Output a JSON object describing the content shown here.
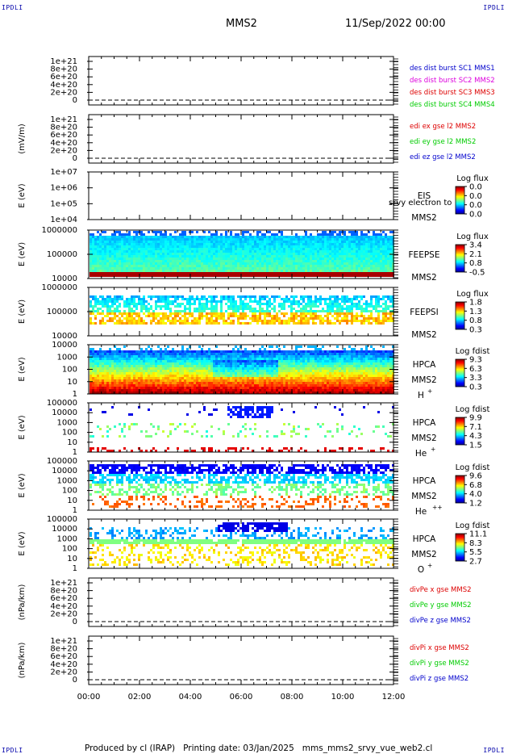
{
  "corner_labels": {
    "top_left": "IPDLI",
    "top_right": "IPDLI",
    "bottom_left": "IPDLI",
    "bottom_right": "IPDLI"
  },
  "header": {
    "spacecraft": "MMS2",
    "datetime": "11/Sep/2022 00:00"
  },
  "footer": {
    "text": "Produced by cl (IRAP)   Printing date: 03/Jan/2025   mms_mms2_srvy_vue_web2.cl"
  },
  "colors": {
    "red": "#dd0000",
    "magenta": "#dd00dd",
    "green": "#00cc00",
    "blue": "#0000cc"
  },
  "chart_data": {
    "type": "multi-panel time series / spectrogram",
    "x_ticks": [
      "00:00",
      "02:00",
      "04:00",
      "06:00",
      "08:00",
      "10:00",
      "12:00"
    ],
    "xlim": [
      "00:00",
      "12:00"
    ],
    "panels": [
      {
        "kind": "line",
        "ylabel": "",
        "yticks": [
          "1e+21",
          "8e+20",
          "6e+20",
          "4e+20",
          "2e+20",
          "0"
        ],
        "legend": [
          {
            "text": "des dist burst SC1 MMS1",
            "color": "blue"
          },
          {
            "text": "des dist burst SC2 MMS2",
            "color": "magenta"
          },
          {
            "text": "des dist burst SC3 MMS3",
            "color": "red"
          },
          {
            "text": "des dist burst SC4 MMS4",
            "color": "green"
          }
        ]
      },
      {
        "kind": "line",
        "ylabel": "(mV/m)",
        "yticks": [
          "1e+21",
          "8e+20",
          "6e+20",
          "4e+20",
          "2e+20",
          "0"
        ],
        "legend": [
          {
            "text": "edi ex gse l2 MMS2",
            "color": "red"
          },
          {
            "text": "edi ey gse l2 MMS2",
            "color": "green"
          },
          {
            "text": "edi ez gse l2 MMS2",
            "color": "blue"
          }
        ]
      },
      {
        "kind": "spectrogram",
        "ylabel": "E (eV)",
        "yticks": [
          "1e+07",
          "1e+06",
          "1e+05",
          "1e+04"
        ],
        "labels": [
          "EIS",
          "MMS2"
        ],
        "overlay": "srvy electron to",
        "cbar_title": "Log flux",
        "cbar_ticks": [
          "0.0",
          "0.0",
          "0.0",
          "0.0"
        ]
      },
      {
        "kind": "spectrogram",
        "ylabel": "E (eV)",
        "yticks": [
          "1000000",
          "100000",
          "10000"
        ],
        "labels": [
          "FEEPSE",
          "MMS2"
        ],
        "cbar_title": "Log flux",
        "cbar_ticks": [
          "3.4",
          "2.1",
          "0.8",
          "-0.5"
        ]
      },
      {
        "kind": "spectrogram",
        "ylabel": "E (eV)",
        "yticks": [
          "1000000",
          "100000",
          "10000"
        ],
        "labels": [
          "FEEPSI",
          "MMS2"
        ],
        "cbar_title": "Log flux",
        "cbar_ticks": [
          "1.8",
          "1.3",
          "0.8",
          "0.3"
        ]
      },
      {
        "kind": "spectrogram",
        "ylabel": "E (eV)",
        "yticks": [
          "10000",
          "1000",
          "100",
          "10",
          "1"
        ],
        "labels": [
          "HPCA",
          "MMS2"
        ],
        "species": "H",
        "species_sup": "+",
        "cbar_title": "Log fdist",
        "cbar_ticks": [
          "9.3",
          "6.3",
          "3.3",
          "0.3"
        ]
      },
      {
        "kind": "spectrogram",
        "ylabel": "E (eV)",
        "yticks": [
          "100000",
          "10000",
          "1000",
          "100",
          "10",
          "1"
        ],
        "labels": [
          "HPCA",
          "MMS2"
        ],
        "species": "He",
        "species_sup": "+",
        "cbar_title": "Log fdist",
        "cbar_ticks": [
          "9.9",
          "7.1",
          "4.3",
          "1.5"
        ]
      },
      {
        "kind": "spectrogram",
        "ylabel": "E (eV)",
        "yticks": [
          "100000",
          "10000",
          "1000",
          "100",
          "10",
          "1"
        ],
        "labels": [
          "HPCA",
          "MMS2"
        ],
        "species": "He",
        "species_sup": "++",
        "cbar_title": "Log fdist",
        "cbar_ticks": [
          "9.6",
          "6.8",
          "4.0",
          "1.2"
        ]
      },
      {
        "kind": "spectrogram",
        "ylabel": "E (eV)",
        "yticks": [
          "100000",
          "10000",
          "1000",
          "100",
          "10",
          "1"
        ],
        "labels": [
          "HPCA",
          "MMS2"
        ],
        "species": "O",
        "species_sup": "+",
        "cbar_title": "Log fdist",
        "cbar_ticks": [
          "11.1",
          "8.3",
          "5.5",
          "2.7"
        ]
      },
      {
        "kind": "line",
        "ylabel": "(nPa/km)",
        "yticks": [
          "1e+21",
          "8e+20",
          "6e+20",
          "4e+20",
          "2e+20",
          "0"
        ],
        "legend": [
          {
            "text": "divPe x gse MMS2",
            "color": "red"
          },
          {
            "text": "divPe y gse MMS2",
            "color": "green"
          },
          {
            "text": "divPe z gse MMS2",
            "color": "blue"
          }
        ]
      },
      {
        "kind": "line",
        "ylabel": "(nPa/km)",
        "yticks": [
          "1e+21",
          "8e+20",
          "6e+20",
          "4e+20",
          "2e+20",
          "0"
        ],
        "legend": [
          {
            "text": "divPi x gse MMS2",
            "color": "red"
          },
          {
            "text": "divPi y gse MMS2",
            "color": "green"
          },
          {
            "text": "divPi z gse MMS2",
            "color": "blue"
          }
        ]
      }
    ]
  }
}
